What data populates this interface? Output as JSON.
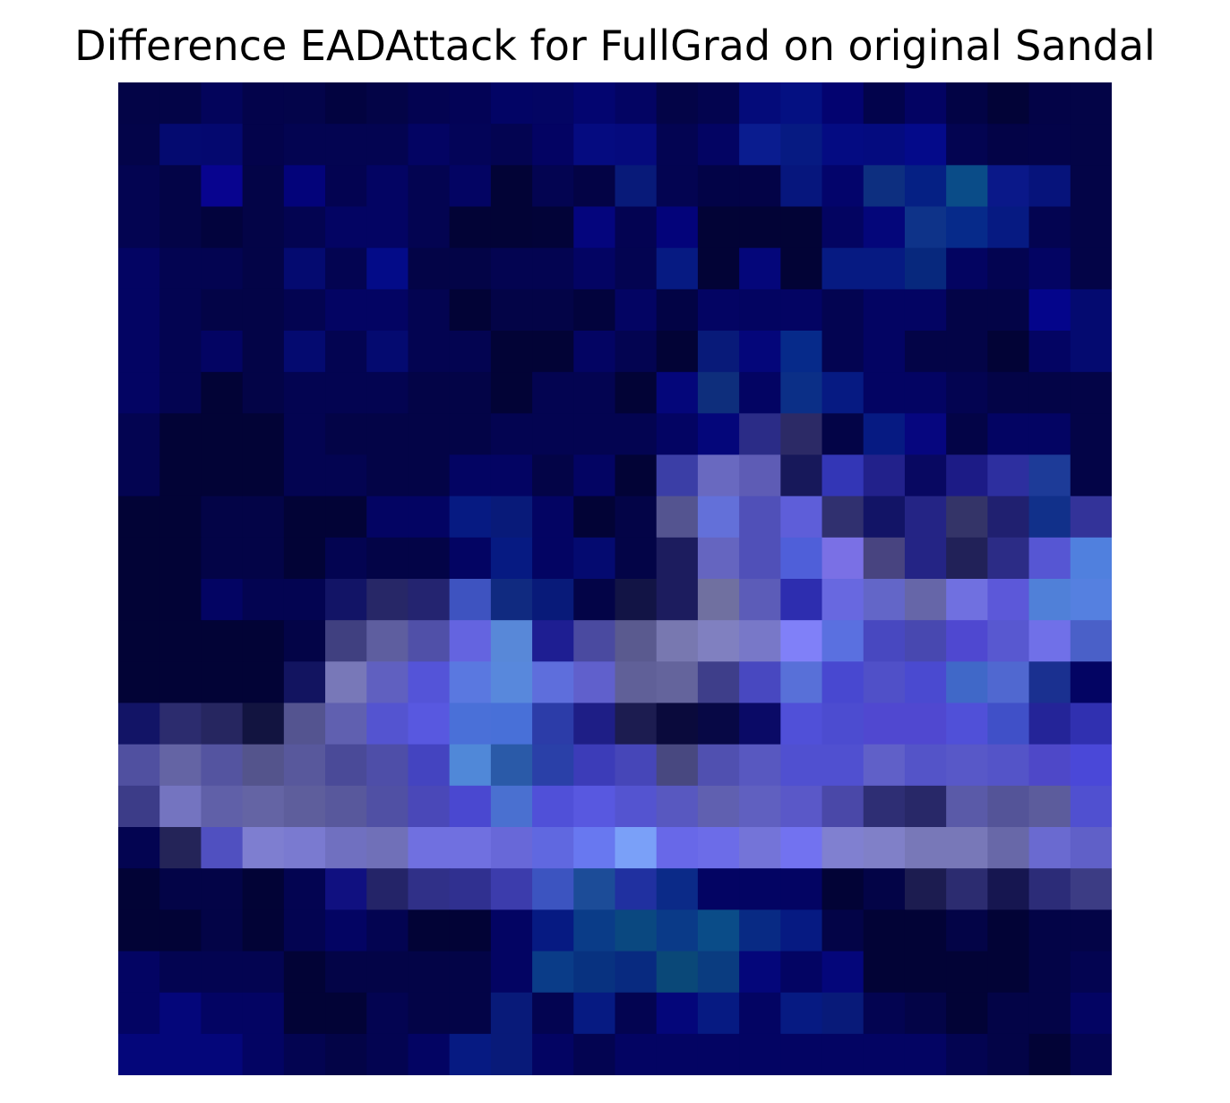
{
  "title": "Difference EADAttack for FullGrad on original Sandal",
  "image": {
    "rows": 24,
    "cols": 24,
    "base_color": "#030447",
    "pixels": [
      [
        "#030447",
        "#030447",
        "#03045b",
        "#03034b",
        "#03044a",
        "#020340",
        "#030447",
        "#030351",
        "#030356",
        "#020465",
        "#030563",
        "#030570",
        "#030463",
        "#030447",
        "#03044f",
        "#040b7a",
        "#041082",
        "#030370",
        "#02034c",
        "#030363",
        "#020345",
        "#020337",
        "#030347",
        "#030447"
      ],
      [
        "#030449",
        "#040a70",
        "#04086f",
        "#03034b",
        "#030451",
        "#030451",
        "#030451",
        "#030463",
        "#030458",
        "#030451",
        "#030363",
        "#050b80",
        "#050a7d",
        "#030452",
        "#030463",
        "#0a1c8f",
        "#061a82",
        "#040b82",
        "#040b7f",
        "#040a8a",
        "#030451",
        "#030347",
        "#030349",
        "#030447"
      ],
      [
        "#030451",
        "#030447",
        "#08048f",
        "#030447",
        "#03037a",
        "#030351",
        "#030463",
        "#030451",
        "#030463",
        "#020336",
        "#030451",
        "#030345",
        "#081a79",
        "#030451",
        "#020347",
        "#030347",
        "#06167d",
        "#03046b",
        "#0d2f80",
        "#052084",
        "#0a4c88",
        "#0a1889",
        "#06137b",
        "#030447"
      ],
      [
        "#030451",
        "#030447",
        "#02033d",
        "#030447",
        "#030451",
        "#030463",
        "#030463",
        "#030451",
        "#020336",
        "#020336",
        "#020338",
        "#04057d",
        "#030352",
        "#03037a",
        "#020336",
        "#020336",
        "#020336",
        "#030461",
        "#04067a",
        "#0e3389",
        "#062a8a",
        "#061a82",
        "#030451",
        "#030447"
      ],
      [
        "#030463",
        "#030451",
        "#030451",
        "#030447",
        "#040a70",
        "#030451",
        "#030b88",
        "#030447",
        "#030447",
        "#030451",
        "#030451",
        "#030463",
        "#030451",
        "#061a82",
        "#020336",
        "#04067a",
        "#020336",
        "#061a82",
        "#061a82",
        "#07287d",
        "#030461",
        "#030451",
        "#030463",
        "#030447"
      ],
      [
        "#030463",
        "#030451",
        "#030447",
        "#030447",
        "#030451",
        "#030463",
        "#030463",
        "#030451",
        "#020336",
        "#030447",
        "#030447",
        "#02033d",
        "#030463",
        "#020345",
        "#030463",
        "#030461",
        "#030463",
        "#030451",
        "#030463",
        "#030463",
        "#030447",
        "#030447",
        "#04058b",
        "#040a70"
      ],
      [
        "#030463",
        "#030451",
        "#030463",
        "#030447",
        "#040a70",
        "#030451",
        "#040a70",
        "#030451",
        "#030451",
        "#020336",
        "#020336",
        "#030463",
        "#030451",
        "#020336",
        "#081a79",
        "#04067a",
        "#062a8a",
        "#030451",
        "#030463",
        "#030447",
        "#030447",
        "#020336",
        "#030463",
        "#040a70"
      ],
      [
        "#030463",
        "#030451",
        "#020336",
        "#030447",
        "#030451",
        "#030451",
        "#030451",
        "#030447",
        "#030447",
        "#020336",
        "#030451",
        "#030451",
        "#020336",
        "#04067a",
        "#0e2e7c",
        "#030463",
        "#0b2f87",
        "#061a82",
        "#030463",
        "#030463",
        "#030451",
        "#030447",
        "#030447",
        "#030447"
      ],
      [
        "#030451",
        "#020336",
        "#020336",
        "#020336",
        "#030451",
        "#030447",
        "#030447",
        "#030447",
        "#030447",
        "#030451",
        "#030451",
        "#030451",
        "#030451",
        "#030463",
        "#04067a",
        "#2b2c87",
        "#2c2a66",
        "#030447",
        "#061a82",
        "#06067f",
        "#030447",
        "#030463",
        "#030463",
        "#030447"
      ],
      [
        "#030451",
        "#020336",
        "#020336",
        "#020336",
        "#030451",
        "#030451",
        "#030447",
        "#030447",
        "#030463",
        "#030463",
        "#030447",
        "#030463",
        "#020336",
        "#3b3ea6",
        "#6969c0",
        "#5e5cb5",
        "#17185a",
        "#3336b6",
        "#22218b",
        "#080861",
        "#1c1b86",
        "#2d2f9f",
        "#1d3b98",
        "#030447"
      ],
      [
        "#020336",
        "#020336",
        "#030447",
        "#030447",
        "#020336",
        "#020336",
        "#030463",
        "#030463",
        "#061a82",
        "#081a79",
        "#030463",
        "#020336",
        "#030447",
        "#545490",
        "#6370d9",
        "#5050b8",
        "#5e5ed9",
        "#30306f",
        "#121466",
        "#242485",
        "#343468",
        "#202070",
        "#11308a",
        "#333399"
      ],
      [
        "#020336",
        "#020336",
        "#030447",
        "#030447",
        "#020336",
        "#030451",
        "#030447",
        "#030447",
        "#030463",
        "#061a82",
        "#030463",
        "#040a70",
        "#030447",
        "#1c1c5e",
        "#6565c0",
        "#5050b8",
        "#4f5fd9",
        "#7a70e5",
        "#484480",
        "#242485",
        "#212158",
        "#2c2c86",
        "#5656d3",
        "#5080de"
      ],
      [
        "#020336",
        "#020336",
        "#030463",
        "#030451",
        "#030451",
        "#121466",
        "#272767",
        "#242470",
        "#3e53c0",
        "#102a80",
        "#081a79",
        "#030447",
        "#121445",
        "#1c1c5e",
        "#7070a0",
        "#5c5cb8",
        "#2d2daf",
        "#6868e0",
        "#6366c8",
        "#6666a8",
        "#7070e0",
        "#5c58d9",
        "#5080d8",
        "#5580e0"
      ],
      [
        "#020336",
        "#020336",
        "#020336",
        "#020336",
        "#030447",
        "#404080",
        "#5e5e9f",
        "#5050a8",
        "#6464e0",
        "#5888d8",
        "#1e1e92",
        "#4a4aa0",
        "#5a5a8f",
        "#7878b0",
        "#8080c0",
        "#7878c8",
        "#8080f8",
        "#5a70e0",
        "#4848c0",
        "#4848b0",
        "#4f48d0",
        "#5858d0",
        "#7070e8",
        "#4a60c8"
      ],
      [
        "#020336",
        "#020336",
        "#020336",
        "#020336",
        "#121460",
        "#7878b8",
        "#6060c0",
        "#5454d8",
        "#5a78e0",
        "#5888dc",
        "#5e6edc",
        "#6060cc",
        "#606098",
        "#64649c",
        "#3e3e8a",
        "#4848c0",
        "#5870d8",
        "#4848d0",
        "#5050c8",
        "#4a4ad0",
        "#4068c8",
        "#5068d0",
        "#1a3090",
        "#030463"
      ],
      [
        "#121466",
        "#2c2c6e",
        "#262660",
        "#121440",
        "#545490",
        "#6060b0",
        "#5454d0",
        "#5858e0",
        "#4a70d8",
        "#4870d8",
        "#2c3ca8",
        "#1e1e86",
        "#1c1c50",
        "#0a0a3c",
        "#070845",
        "#0a0a66",
        "#5050d8",
        "#4c4cd0",
        "#5048d0",
        "#5048d0",
        "#5050d8",
        "#4050c8",
        "#242498",
        "#3030b0"
      ],
      [
        "#5050a0",
        "#6464a4",
        "#5454a0",
        "#54548c",
        "#58589c",
        "#4a4a98",
        "#4e4ea8",
        "#4444c0",
        "#5088d8",
        "#2a5aa8",
        "#2a40a8",
        "#3c3cb8",
        "#4646b8",
        "#484880",
        "#5050b0",
        "#5858c0",
        "#5050d0",
        "#5050d0",
        "#6060c8",
        "#5454c8",
        "#5858c8",
        "#5454c8",
        "#4e48c8",
        "#4a48d8"
      ],
      [
        "#3c3c88",
        "#7474c0",
        "#6060a8",
        "#6464a4",
        "#5e5e9c",
        "#58589c",
        "#5050a4",
        "#4a48b8",
        "#4a48d0",
        "#4a70d0",
        "#5050d8",
        "#5858e0",
        "#5454d0",
        "#5858c0",
        "#6060b0",
        "#6060c0",
        "#5a58c8",
        "#4a48a8",
        "#2e2e74",
        "#282868",
        "#5a5aa8",
        "#545498",
        "#5c5c9c",
        "#5050d0"
      ],
      [
        "#030451",
        "#242458",
        "#5050c0",
        "#7e7ed0",
        "#7a7ad0",
        "#7070c0",
        "#7070b8",
        "#7070e0",
        "#7070e0",
        "#6868d8",
        "#6068e0",
        "#6878f0",
        "#7aa0f8",
        "#6868e8",
        "#6c6ce8",
        "#7474d8",
        "#7272f0",
        "#8080d0",
        "#8080c8",
        "#7878b8",
        "#7878b8",
        "#6868a8",
        "#6a6ad0",
        "#6060c8"
      ],
      [
        "#020336",
        "#030447",
        "#030447",
        "#020336",
        "#030451",
        "#101080",
        "#242468",
        "#303088",
        "#303090",
        "#3c3cac",
        "#3c54c0",
        "#1c4c98",
        "#2030a0",
        "#0b2a88",
        "#030463",
        "#030463",
        "#030463",
        "#020336",
        "#030447",
        "#1c1c50",
        "#2c2c70",
        "#161650",
        "#2c2c78",
        "#3c3c84"
      ],
      [
        "#020336",
        "#020336",
        "#030447",
        "#020336",
        "#030451",
        "#030463",
        "#030451",
        "#020336",
        "#020336",
        "#030463",
        "#061a82",
        "#0a3c88",
        "#0a4880",
        "#0a3a88",
        "#0a4c88",
        "#082a84",
        "#061a82",
        "#030447",
        "#020336",
        "#020336",
        "#030447",
        "#020336",
        "#030447",
        "#030447"
      ],
      [
        "#030463",
        "#030451",
        "#030451",
        "#030451",
        "#020336",
        "#030447",
        "#030447",
        "#030447",
        "#030447",
        "#030463",
        "#0a3c88",
        "#083280",
        "#082a80",
        "#0a4878",
        "#0a3c80",
        "#04067a",
        "#030463",
        "#04067a",
        "#020336",
        "#020336",
        "#020336",
        "#020336",
        "#030447",
        "#030451"
      ],
      [
        "#030463",
        "#04067a",
        "#030463",
        "#030463",
        "#020336",
        "#020336",
        "#030451",
        "#030447",
        "#030447",
        "#081a79",
        "#030451",
        "#061a82",
        "#030451",
        "#04067a",
        "#061a82",
        "#030463",
        "#061a82",
        "#081a79",
        "#030451",
        "#030447",
        "#020336",
        "#030447",
        "#030447",
        "#030463"
      ],
      [
        "#04067a",
        "#04067a",
        "#04067a",
        "#030463",
        "#030451",
        "#030447",
        "#030451",
        "#030463",
        "#061a82",
        "#081a79",
        "#030463",
        "#030451",
        "#030463",
        "#030463",
        "#030463",
        "#030463",
        "#030463",
        "#030463",
        "#030463",
        "#030463",
        "#030451",
        "#030447",
        "#020336",
        "#030451"
      ]
    ]
  }
}
